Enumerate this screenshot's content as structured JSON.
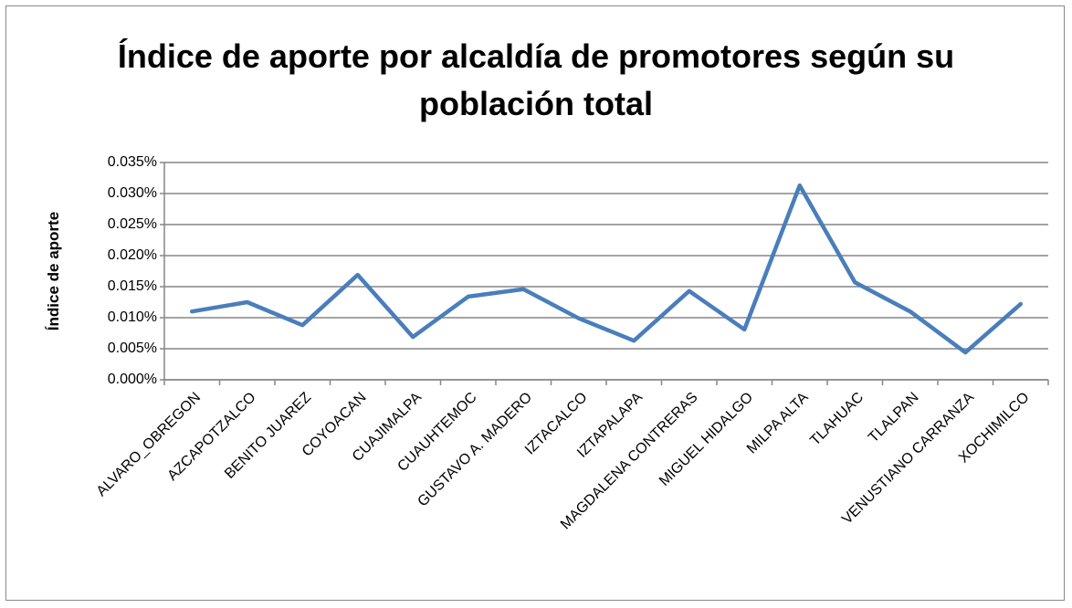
{
  "chart_data": {
    "type": "line",
    "title": "Índice de aporte por alcaldía de promotores según su población total",
    "y_label": "Índice de aporte",
    "categories": [
      "ALVARO_OBREGON",
      "AZCAPOTZALCO",
      "BENITO JUAREZ",
      "COYOACAN",
      "CUAJIMALPA",
      "CUAUHTEMOC",
      "GUSTAVO A. MADERO",
      "IZTACALCO",
      "IZTAPALAPA",
      "MAGDALENA CONTRERAS",
      "MIGUEL HIDALGO",
      "MILPA ALTA",
      "TLAHUAC",
      "TLALPAN",
      "VENUSTIANO CARRANZA",
      "XOCHIMILCO"
    ],
    "values": [
      0.011,
      0.0125,
      0.0088,
      0.0169,
      0.0069,
      0.0134,
      0.0146,
      0.0099,
      0.0063,
      0.0143,
      0.0081,
      0.0313,
      0.0157,
      0.011,
      0.0044,
      0.0122
    ],
    "color": "#4a7ebb",
    "ylim": [
      0,
      0.035
    ],
    "yticks": [
      {
        "value": 0,
        "label": "0.000%"
      },
      {
        "value": 0.005,
        "label": "0.005%"
      },
      {
        "value": 0.01,
        "label": "0.010%"
      },
      {
        "value": 0.015,
        "label": "0.015%"
      },
      {
        "value": 0.02,
        "label": "0.020%"
      },
      {
        "value": 0.025,
        "label": "0.025%"
      },
      {
        "value": 0.03,
        "label": "0.030%"
      },
      {
        "value": 0.035,
        "label": "0.035%"
      }
    ],
    "grid": true
  }
}
